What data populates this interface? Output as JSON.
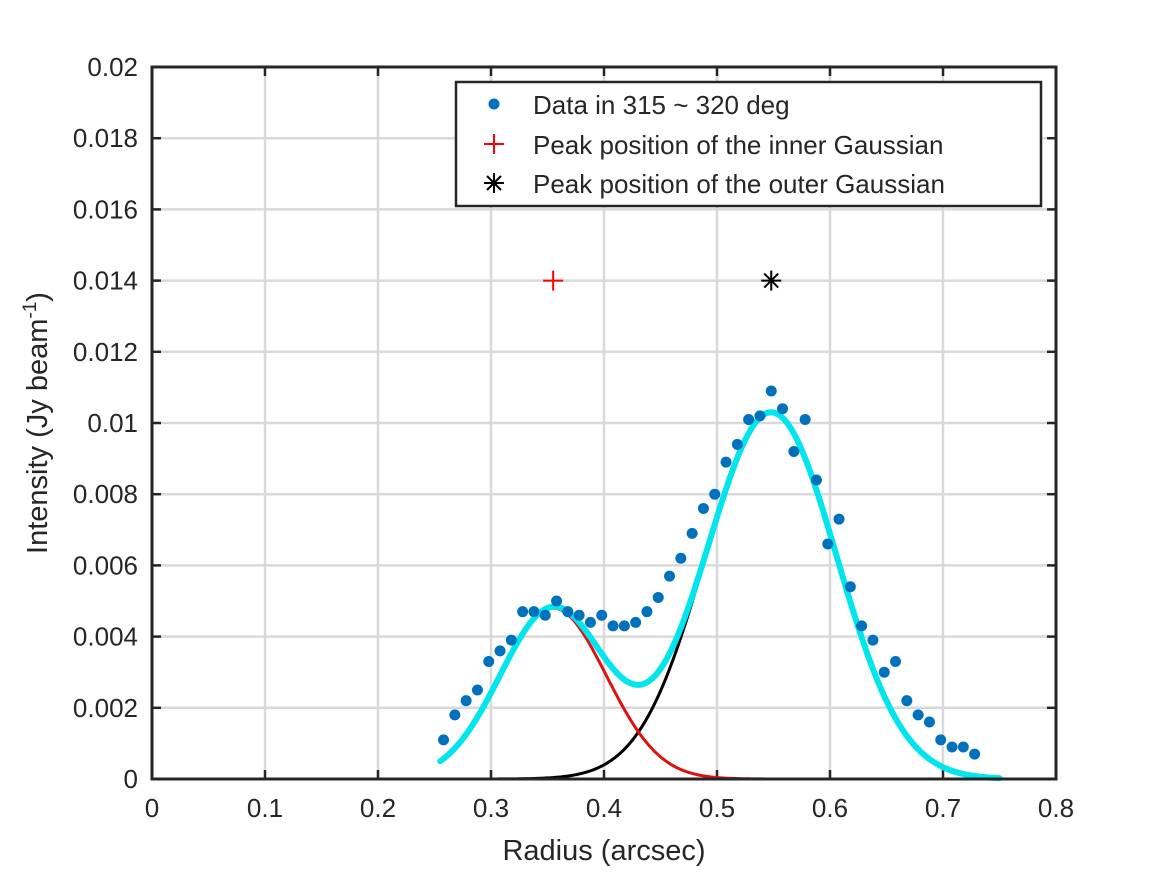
{
  "chart_data": {
    "type": "scatter",
    "xlabel": "Radius (arcsec)",
    "ylabel": "Intensity (Jy beam",
    "ylabel_superscript": "-1",
    "ylabel_close": ")",
    "xlim": [
      0,
      0.8
    ],
    "ylim": [
      0,
      0.02
    ],
    "grid": true,
    "x_ticks": [
      0,
      0.1,
      0.2,
      0.3,
      0.4,
      0.5,
      0.6,
      0.7,
      0.8
    ],
    "x_tick_labels": [
      "0",
      "0.1",
      "0.2",
      "0.3",
      "0.4",
      "0.5",
      "0.6",
      "0.7",
      "0.8"
    ],
    "y_ticks": [
      0,
      0.002,
      0.004,
      0.006,
      0.008,
      0.01,
      0.012,
      0.014,
      0.016,
      0.018,
      0.02
    ],
    "y_tick_labels": [
      "0",
      "0.002",
      "0.004",
      "0.006",
      "0.008",
      "0.01",
      "0.012",
      "0.014",
      "0.016",
      "0.018",
      "0.02"
    ],
    "legend_position": "top-right",
    "legend": [
      {
        "label": "Data in 315 ~ 320 deg",
        "marker": "dot",
        "color": "#0072BD"
      },
      {
        "label": "Peak position of the inner Gaussian",
        "marker": "plus",
        "color": "#FF0000"
      },
      {
        "label": "Peak position of the outer Gaussian",
        "marker": "asterisk",
        "color": "#000000"
      }
    ],
    "series": [
      {
        "name": "Data in 315 ~ 320 deg",
        "kind": "points",
        "color": "#0072BD",
        "x": [
          0.258,
          0.268,
          0.278,
          0.288,
          0.298,
          0.308,
          0.318,
          0.328,
          0.338,
          0.348,
          0.358,
          0.368,
          0.378,
          0.388,
          0.398,
          0.408,
          0.418,
          0.428,
          0.438,
          0.448,
          0.458,
          0.468,
          0.478,
          0.488,
          0.498,
          0.508,
          0.518,
          0.528,
          0.538,
          0.548,
          0.558,
          0.568,
          0.578,
          0.588,
          0.598,
          0.608,
          0.618,
          0.628,
          0.638,
          0.648,
          0.658,
          0.668,
          0.678,
          0.688,
          0.698,
          0.708,
          0.718,
          0.728
        ],
        "y": [
          0.0011,
          0.0018,
          0.0022,
          0.0025,
          0.0033,
          0.0036,
          0.0039,
          0.0047,
          0.0047,
          0.0046,
          0.005,
          0.0047,
          0.0046,
          0.0044,
          0.0046,
          0.0043,
          0.0043,
          0.0044,
          0.0047,
          0.0051,
          0.0057,
          0.0062,
          0.0069,
          0.0076,
          0.008,
          0.0089,
          0.0094,
          0.0101,
          0.0102,
          0.0109,
          0.0104,
          0.0092,
          0.0101,
          0.0084,
          0.0066,
          0.0073,
          0.0054,
          0.0043,
          0.0039,
          0.003,
          0.0033,
          0.0022,
          0.0018,
          0.0016,
          0.0011,
          0.0009,
          0.0009,
          0.0007
        ]
      },
      {
        "name": "Inner Gaussian",
        "kind": "gaussian",
        "color": "#E01010",
        "amplitude": 0.0048,
        "center": 0.355,
        "sigma": 0.047,
        "x_range": [
          0.258,
          0.75
        ]
      },
      {
        "name": "Outer Gaussian",
        "kind": "gaussian",
        "color": "#000000",
        "amplitude": 0.0103,
        "center": 0.548,
        "sigma": 0.058,
        "x_range": [
          0.258,
          0.75
        ]
      },
      {
        "name": "Total fit",
        "kind": "sum",
        "color": "#00E5EE",
        "x_range": [
          0.255,
          0.75
        ]
      }
    ],
    "markers": [
      {
        "name": "inner-peak-marker",
        "shape": "plus",
        "x": 0.355,
        "y": 0.014,
        "color": "#FF0000"
      },
      {
        "name": "outer-peak-marker",
        "shape": "asterisk",
        "x": 0.548,
        "y": 0.014,
        "color": "#000000"
      }
    ]
  }
}
